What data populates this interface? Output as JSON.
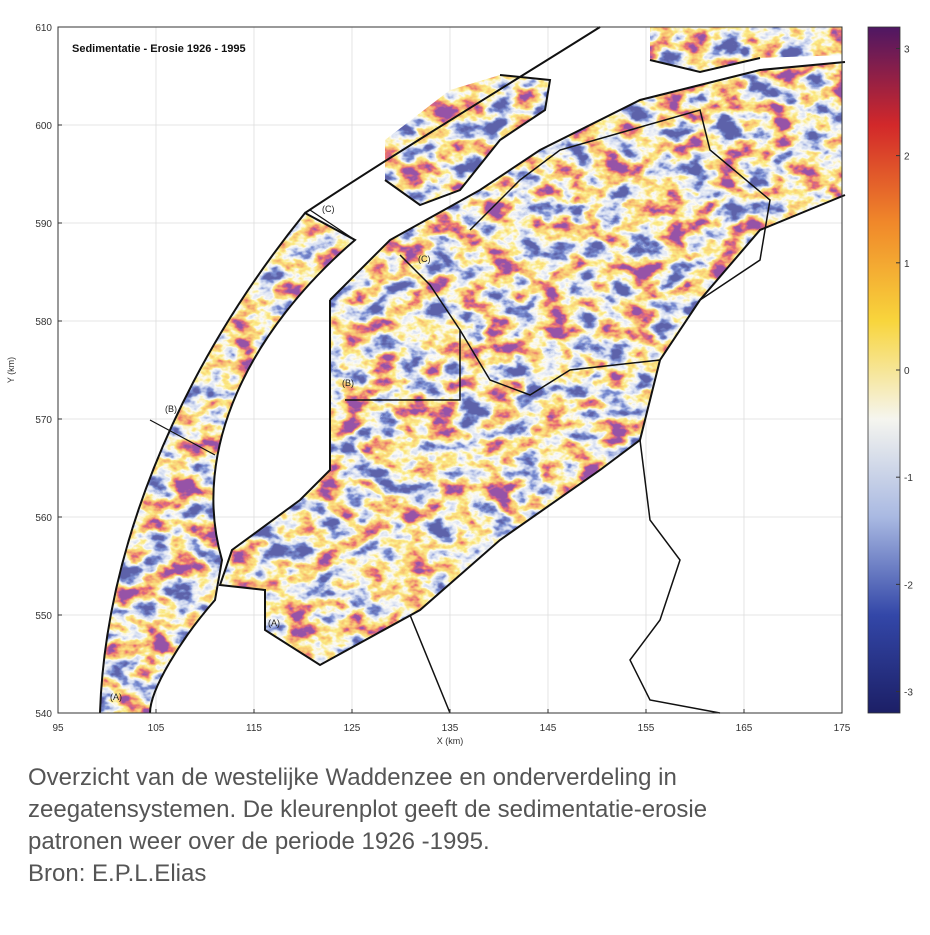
{
  "chart_data": {
    "type": "map",
    "title": "Sedimentatie - Erosie 1926 - 1995",
    "xlabel": "X (km)",
    "ylabel": "Y (km)",
    "xlim": [
      95,
      175
    ],
    "ylim": [
      540,
      610
    ],
    "xticks": [
      95,
      105,
      115,
      125,
      135,
      145,
      155,
      165,
      175
    ],
    "yticks": [
      540,
      550,
      560,
      570,
      580,
      590,
      600,
      610
    ],
    "grid": true,
    "colorbar": {
      "clim": [
        -3.2,
        3.2
      ],
      "ticks": [
        -3,
        -2,
        -1,
        0,
        1,
        2,
        3
      ],
      "colormap": [
        "#1c1f66",
        "#3347a8",
        "#a9b9e2",
        "#f5f5ef",
        "#f8d53c",
        "#f0882a",
        "#d2282a",
        "#4e1763"
      ]
    },
    "region_labels": [
      "(C)",
      "(C)",
      "(B)",
      "(B)",
      "(A)",
      "(A)"
    ]
  },
  "caption": [
    "Overzicht van de westelijke Waddenzee en onderverdeling in",
    "zeegatensystemen. De kleurenplot geeft de sedimentatie-erosie",
    "patronen weer over de periode 1926 -1995.",
    "Bron: E.P.L.Elias"
  ]
}
